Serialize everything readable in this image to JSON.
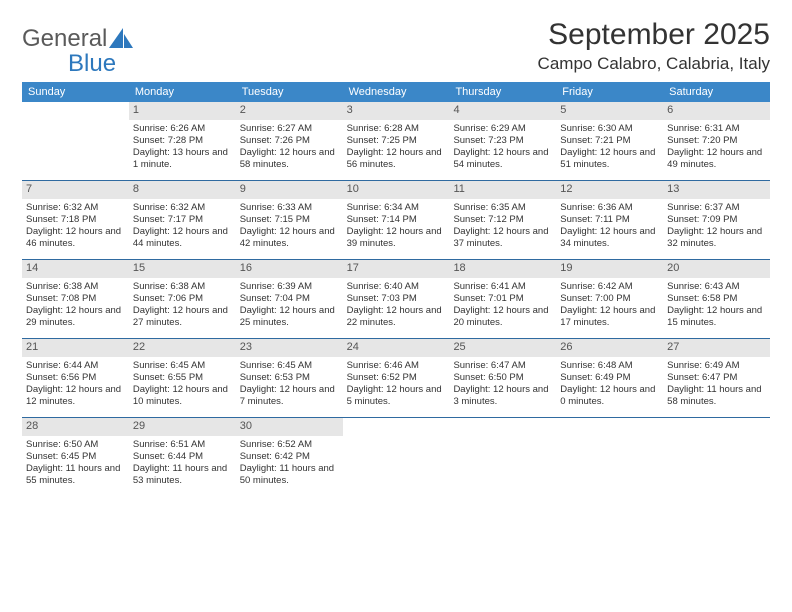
{
  "logo": {
    "word1": "General",
    "word2": "Blue"
  },
  "title": "September 2025",
  "location": "Campo Calabro, Calabria, Italy",
  "colors": {
    "header_bg": "#3b87c8",
    "header_text": "#ffffff",
    "daynum_bg": "#e6e6e6",
    "week_border": "#2f6aa0",
    "logo_gray": "#5a5a5a",
    "logo_blue": "#2d78bd"
  },
  "daysOfWeek": [
    "Sunday",
    "Monday",
    "Tuesday",
    "Wednesday",
    "Thursday",
    "Friday",
    "Saturday"
  ],
  "weeks": [
    [
      {
        "n": "",
        "lines": []
      },
      {
        "n": "1",
        "lines": [
          "Sunrise: 6:26 AM",
          "Sunset: 7:28 PM",
          "Daylight: 13 hours and 1 minute."
        ]
      },
      {
        "n": "2",
        "lines": [
          "Sunrise: 6:27 AM",
          "Sunset: 7:26 PM",
          "Daylight: 12 hours and 58 minutes."
        ]
      },
      {
        "n": "3",
        "lines": [
          "Sunrise: 6:28 AM",
          "Sunset: 7:25 PM",
          "Daylight: 12 hours and 56 minutes."
        ]
      },
      {
        "n": "4",
        "lines": [
          "Sunrise: 6:29 AM",
          "Sunset: 7:23 PM",
          "Daylight: 12 hours and 54 minutes."
        ]
      },
      {
        "n": "5",
        "lines": [
          "Sunrise: 6:30 AM",
          "Sunset: 7:21 PM",
          "Daylight: 12 hours and 51 minutes."
        ]
      },
      {
        "n": "6",
        "lines": [
          "Sunrise: 6:31 AM",
          "Sunset: 7:20 PM",
          "Daylight: 12 hours and 49 minutes."
        ]
      }
    ],
    [
      {
        "n": "7",
        "lines": [
          "Sunrise: 6:32 AM",
          "Sunset: 7:18 PM",
          "Daylight: 12 hours and 46 minutes."
        ]
      },
      {
        "n": "8",
        "lines": [
          "Sunrise: 6:32 AM",
          "Sunset: 7:17 PM",
          "Daylight: 12 hours and 44 minutes."
        ]
      },
      {
        "n": "9",
        "lines": [
          "Sunrise: 6:33 AM",
          "Sunset: 7:15 PM",
          "Daylight: 12 hours and 42 minutes."
        ]
      },
      {
        "n": "10",
        "lines": [
          "Sunrise: 6:34 AM",
          "Sunset: 7:14 PM",
          "Daylight: 12 hours and 39 minutes."
        ]
      },
      {
        "n": "11",
        "lines": [
          "Sunrise: 6:35 AM",
          "Sunset: 7:12 PM",
          "Daylight: 12 hours and 37 minutes."
        ]
      },
      {
        "n": "12",
        "lines": [
          "Sunrise: 6:36 AM",
          "Sunset: 7:11 PM",
          "Daylight: 12 hours and 34 minutes."
        ]
      },
      {
        "n": "13",
        "lines": [
          "Sunrise: 6:37 AM",
          "Sunset: 7:09 PM",
          "Daylight: 12 hours and 32 minutes."
        ]
      }
    ],
    [
      {
        "n": "14",
        "lines": [
          "Sunrise: 6:38 AM",
          "Sunset: 7:08 PM",
          "Daylight: 12 hours and 29 minutes."
        ]
      },
      {
        "n": "15",
        "lines": [
          "Sunrise: 6:38 AM",
          "Sunset: 7:06 PM",
          "Daylight: 12 hours and 27 minutes."
        ]
      },
      {
        "n": "16",
        "lines": [
          "Sunrise: 6:39 AM",
          "Sunset: 7:04 PM",
          "Daylight: 12 hours and 25 minutes."
        ]
      },
      {
        "n": "17",
        "lines": [
          "Sunrise: 6:40 AM",
          "Sunset: 7:03 PM",
          "Daylight: 12 hours and 22 minutes."
        ]
      },
      {
        "n": "18",
        "lines": [
          "Sunrise: 6:41 AM",
          "Sunset: 7:01 PM",
          "Daylight: 12 hours and 20 minutes."
        ]
      },
      {
        "n": "19",
        "lines": [
          "Sunrise: 6:42 AM",
          "Sunset: 7:00 PM",
          "Daylight: 12 hours and 17 minutes."
        ]
      },
      {
        "n": "20",
        "lines": [
          "Sunrise: 6:43 AM",
          "Sunset: 6:58 PM",
          "Daylight: 12 hours and 15 minutes."
        ]
      }
    ],
    [
      {
        "n": "21",
        "lines": [
          "Sunrise: 6:44 AM",
          "Sunset: 6:56 PM",
          "Daylight: 12 hours and 12 minutes."
        ]
      },
      {
        "n": "22",
        "lines": [
          "Sunrise: 6:45 AM",
          "Sunset: 6:55 PM",
          "Daylight: 12 hours and 10 minutes."
        ]
      },
      {
        "n": "23",
        "lines": [
          "Sunrise: 6:45 AM",
          "Sunset: 6:53 PM",
          "Daylight: 12 hours and 7 minutes."
        ]
      },
      {
        "n": "24",
        "lines": [
          "Sunrise: 6:46 AM",
          "Sunset: 6:52 PM",
          "Daylight: 12 hours and 5 minutes."
        ]
      },
      {
        "n": "25",
        "lines": [
          "Sunrise: 6:47 AM",
          "Sunset: 6:50 PM",
          "Daylight: 12 hours and 3 minutes."
        ]
      },
      {
        "n": "26",
        "lines": [
          "Sunrise: 6:48 AM",
          "Sunset: 6:49 PM",
          "Daylight: 12 hours and 0 minutes."
        ]
      },
      {
        "n": "27",
        "lines": [
          "Sunrise: 6:49 AM",
          "Sunset: 6:47 PM",
          "Daylight: 11 hours and 58 minutes."
        ]
      }
    ],
    [
      {
        "n": "28",
        "lines": [
          "Sunrise: 6:50 AM",
          "Sunset: 6:45 PM",
          "Daylight: 11 hours and 55 minutes."
        ]
      },
      {
        "n": "29",
        "lines": [
          "Sunrise: 6:51 AM",
          "Sunset: 6:44 PM",
          "Daylight: 11 hours and 53 minutes."
        ]
      },
      {
        "n": "30",
        "lines": [
          "Sunrise: 6:52 AM",
          "Sunset: 6:42 PM",
          "Daylight: 11 hours and 50 minutes."
        ]
      },
      {
        "n": "",
        "lines": []
      },
      {
        "n": "",
        "lines": []
      },
      {
        "n": "",
        "lines": []
      },
      {
        "n": "",
        "lines": []
      }
    ]
  ]
}
